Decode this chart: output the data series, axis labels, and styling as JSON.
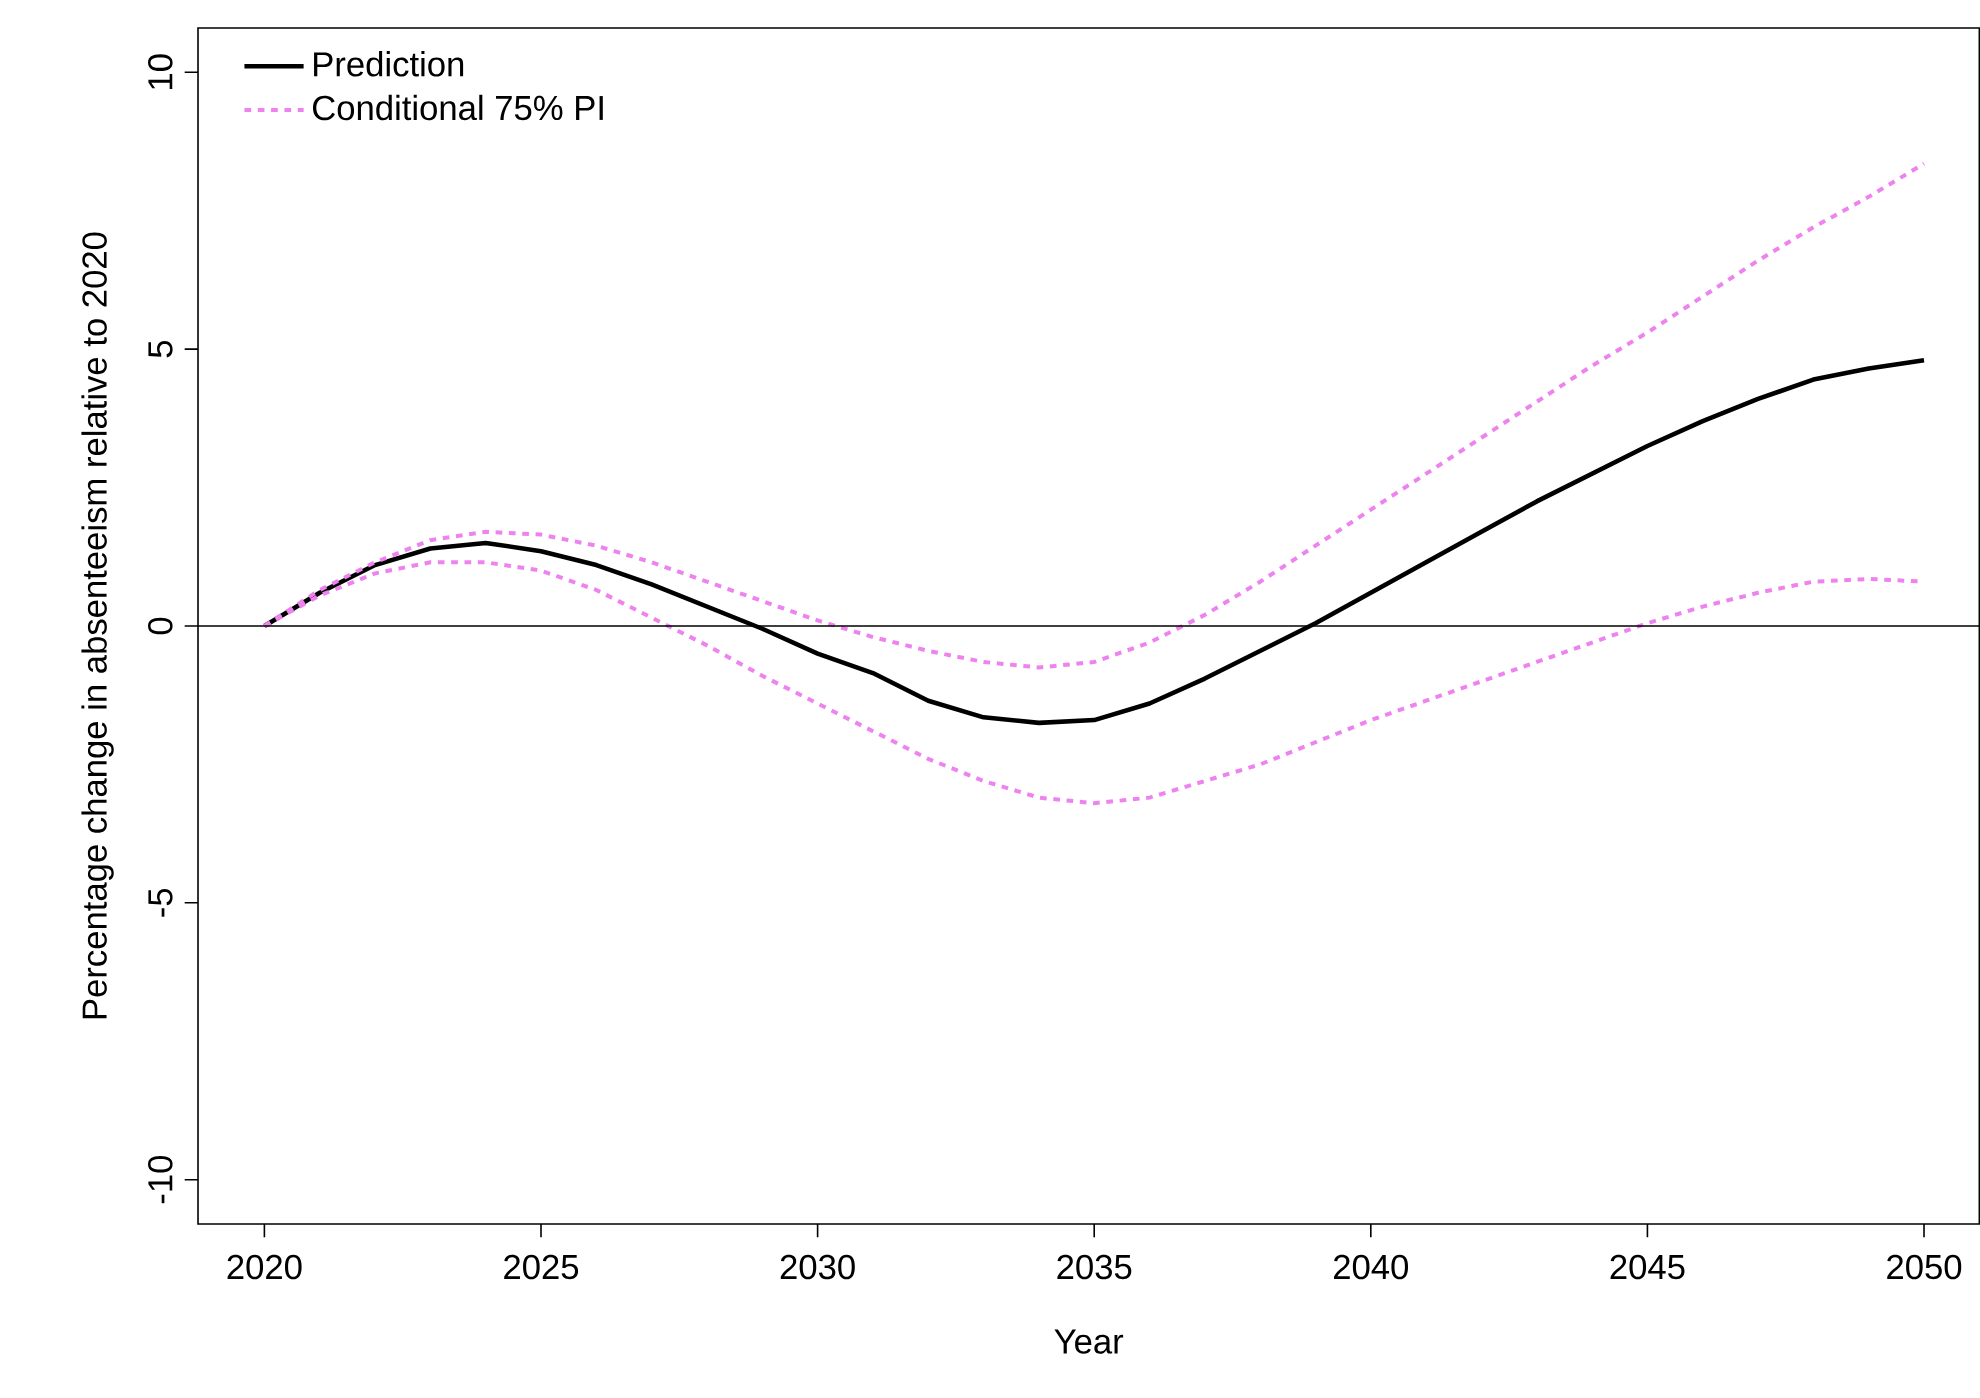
{
  "chart_data": {
    "type": "line",
    "xlabel": "Year",
    "ylabel": "Percentage change in absenteeism relative to 2020",
    "x": [
      2020,
      2021,
      2022,
      2023,
      2024,
      2025,
      2026,
      2027,
      2028,
      2029,
      2030,
      2031,
      2032,
      2033,
      2034,
      2035,
      2036,
      2037,
      2038,
      2039,
      2040,
      2041,
      2042,
      2043,
      2044,
      2045,
      2046,
      2047,
      2048,
      2049,
      2050
    ],
    "series": [
      {
        "name": "Prediction",
        "color": "#000000",
        "line_style": "solid",
        "values": [
          0,
          0.6,
          1.1,
          1.4,
          1.5,
          1.35,
          1.1,
          0.75,
          0.35,
          -0.05,
          -0.5,
          -0.85,
          -1.35,
          -1.65,
          -1.75,
          -1.7,
          -1.4,
          -0.95,
          -0.45,
          0.05,
          0.6,
          1.15,
          1.7,
          2.25,
          2.75,
          3.25,
          3.7,
          4.1,
          4.45,
          4.65,
          4.8
        ]
      },
      {
        "name": "Conditional 75% PI",
        "color": "#ee82ee",
        "line_style": "dotted",
        "values": [
          0,
          0.65,
          1.15,
          1.55,
          1.7,
          1.65,
          1.45,
          1.15,
          0.8,
          0.45,
          0.1,
          -0.2,
          -0.45,
          -0.65,
          -0.75,
          -0.65,
          -0.3,
          0.2,
          0.8,
          1.45,
          2.1,
          2.75,
          3.4,
          4.05,
          4.7,
          5.3,
          5.95,
          6.6,
          7.2,
          7.75,
          8.35
        ]
      },
      {
        "color": "#ee82ee",
        "line_style": "dotted",
        "values": [
          0,
          0.55,
          0.95,
          1.15,
          1.15,
          1.0,
          0.65,
          0.15,
          -0.35,
          -0.9,
          -1.4,
          -1.9,
          -2.4,
          -2.8,
          -3.1,
          -3.2,
          -3.1,
          -2.8,
          -2.5,
          -2.1,
          -1.7,
          -1.35,
          -1.0,
          -0.65,
          -0.3,
          0.05,
          0.35,
          0.6,
          0.8,
          0.85,
          0.8
        ]
      }
    ],
    "xlim": [
      2018.8,
      2051
    ],
    "ylim": [
      -10.8,
      10.8
    ],
    "xticks": [
      2020,
      2025,
      2030,
      2035,
      2040,
      2045,
      2050
    ],
    "yticks": [
      -10,
      -5,
      0,
      5,
      10
    ],
    "legend": "top left",
    "ref_lines": [
      {
        "axis": "y",
        "value": 0,
        "color": "#000000"
      }
    ]
  }
}
